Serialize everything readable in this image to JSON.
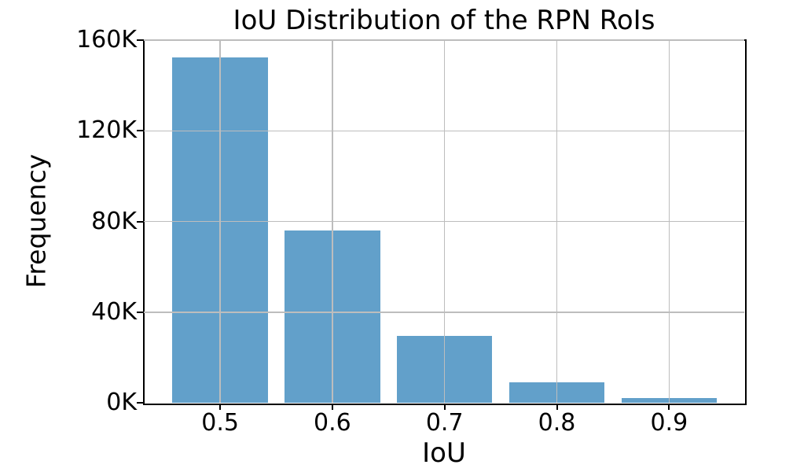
{
  "chart_data": {
    "type": "bar",
    "title": "IoU Distribution of the RPN RoIs",
    "xlabel": "IoU",
    "ylabel": "Frequency",
    "categories": [
      "0.5",
      "0.6",
      "0.7",
      "0.8",
      "0.9"
    ],
    "x": [
      0.5,
      0.6,
      0.7,
      0.8,
      0.9
    ],
    "values": [
      152500,
      76000,
      29400,
      9000,
      2000
    ],
    "bar_width": 0.085,
    "xlim": [
      0.432,
      0.967
    ],
    "ylim": [
      0,
      160000
    ],
    "xticks": [
      0.5,
      0.6,
      0.7,
      0.8,
      0.9
    ],
    "xtick_labels": [
      "0.5",
      "0.6",
      "0.7",
      "0.8",
      "0.9"
    ],
    "yticks": [
      0,
      40000,
      80000,
      120000,
      160000
    ],
    "ytick_labels": [
      "0K",
      "40K",
      "80K",
      "120K",
      "160K"
    ],
    "grid": true,
    "grid_over_bars": true,
    "legend_position": "none",
    "bar_color": "#62A0CA",
    "grid_color": "#bdbdbd",
    "axis_color": "#000000",
    "background_color": "#ffffff"
  }
}
